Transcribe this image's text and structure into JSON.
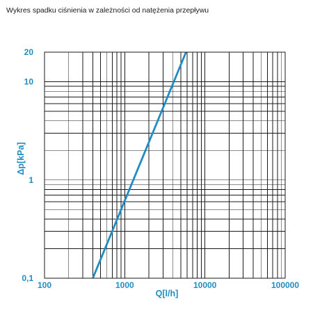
{
  "chart_data": {
    "type": "line",
    "title": "Wykres spadku ciśnienia w zależności od natężenia przepływu",
    "xlabel": "Q[l/h]",
    "ylabel": "Δp[kPa]",
    "x_scale": "log",
    "y_scale": "log",
    "xlim": [
      100,
      100000
    ],
    "ylim": [
      0.1,
      20
    ],
    "grid": true,
    "x_ticks": [
      {
        "value": 100,
        "label": "100"
      },
      {
        "value": 1000,
        "label": "1000"
      },
      {
        "value": 10000,
        "label": "10000"
      },
      {
        "value": 100000,
        "label": "100000"
      }
    ],
    "y_ticks": [
      {
        "value": 0.1,
        "label": "0,1"
      },
      {
        "value": 1,
        "label": "1"
      },
      {
        "value": 10,
        "label": "10"
      },
      {
        "value": 20,
        "label": "20"
      }
    ],
    "series": [
      {
        "color": "#1f8cc4",
        "x": [
          400,
          5800
        ],
        "y": [
          0.1,
          20
        ]
      }
    ]
  }
}
